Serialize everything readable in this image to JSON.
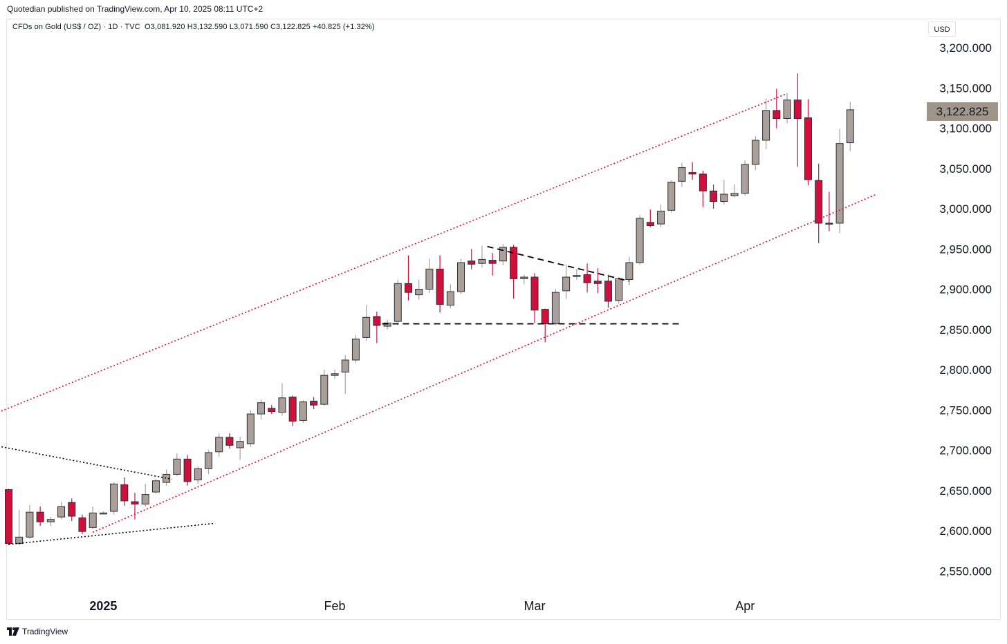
{
  "header": {
    "publisher_text": "Quotedian published on TradingView.com, Apr 10, 2025 08:11 UTC+2"
  },
  "legend": {
    "symbol_text": "CFDs on Gold (US$ / OZ) · 1D · TVC",
    "ohlc_text": "O3,081.920  H3,132.590  L3,071.590  C3,122.825  +40.825 (+1.32%)"
  },
  "price_scale": {
    "currency": "USD",
    "last_price_label": "3,122.825"
  },
  "footer": {
    "brand": "TradingView"
  },
  "colors": {
    "up": "#aaa099",
    "down": "#d0103a",
    "outline": "#2a2e39",
    "channel": "#d0103a",
    "pattern": "#000000",
    "last_price_bg": "#a0958a"
  },
  "chart_data": {
    "type": "candlestick",
    "title": "CFDs on Gold (US$ / OZ)",
    "interval": "1D",
    "ylim": [
      2520,
      3230
    ],
    "y_ticks": [
      {
        "value": 2550,
        "label": "2,550.000"
      },
      {
        "value": 2600,
        "label": "2,600.000"
      },
      {
        "value": 2650,
        "label": "2,650.000"
      },
      {
        "value": 2700,
        "label": "2,700.000"
      },
      {
        "value": 2750,
        "label": "2,750.000"
      },
      {
        "value": 2800,
        "label": "2,800.000"
      },
      {
        "value": 2850,
        "label": "2,850.000"
      },
      {
        "value": 2900,
        "label": "2,900.000"
      },
      {
        "value": 2950,
        "label": "2,950.000"
      },
      {
        "value": 3000,
        "label": "3,000.000"
      },
      {
        "value": 3050,
        "label": "3,050.000"
      },
      {
        "value": 3100,
        "label": "3,100.000"
      },
      {
        "value": 3150,
        "label": "3,150.000"
      },
      {
        "value": 3200,
        "label": "3,200.000"
      }
    ],
    "x_ticks": [
      {
        "index": 9,
        "label": "2025",
        "bold": true
      },
      {
        "index": 31,
        "label": "Feb",
        "bold": false
      },
      {
        "index": 50,
        "label": "Mar",
        "bold": false
      },
      {
        "index": 70,
        "label": "Apr",
        "bold": false
      }
    ],
    "candles": [
      {
        "o": 2651,
        "h": 2652,
        "l": 2582,
        "c": 2584
      },
      {
        "o": 2584,
        "h": 2626,
        "l": 2582,
        "c": 2592
      },
      {
        "o": 2592,
        "h": 2632,
        "l": 2590,
        "c": 2623
      },
      {
        "o": 2623,
        "h": 2630,
        "l": 2606,
        "c": 2611
      },
      {
        "o": 2611,
        "h": 2617,
        "l": 2606,
        "c": 2614
      },
      {
        "o": 2617,
        "h": 2636,
        "l": 2614,
        "c": 2630
      },
      {
        "o": 2635,
        "h": 2640,
        "l": 2612,
        "c": 2618
      },
      {
        "o": 2616,
        "h": 2620,
        "l": 2596,
        "c": 2599
      },
      {
        "o": 2604,
        "h": 2630,
        "l": 2602,
        "c": 2622
      },
      {
        "o": 2622,
        "h": 2624,
        "l": 2620,
        "c": 2622
      },
      {
        "o": 2624,
        "h": 2660,
        "l": 2620,
        "c": 2658
      },
      {
        "o": 2657,
        "h": 2666,
        "l": 2631,
        "c": 2637
      },
      {
        "o": 2636,
        "h": 2647,
        "l": 2614,
        "c": 2633
      },
      {
        "o": 2633,
        "h": 2658,
        "l": 2630,
        "c": 2645
      },
      {
        "o": 2648,
        "h": 2664,
        "l": 2646,
        "c": 2662
      },
      {
        "o": 2660,
        "h": 2676,
        "l": 2656,
        "c": 2670
      },
      {
        "o": 2670,
        "h": 2696,
        "l": 2668,
        "c": 2689
      },
      {
        "o": 2689,
        "h": 2694,
        "l": 2656,
        "c": 2661
      },
      {
        "o": 2663,
        "h": 2680,
        "l": 2658,
        "c": 2677
      },
      {
        "o": 2677,
        "h": 2700,
        "l": 2670,
        "c": 2697
      },
      {
        "o": 2698,
        "h": 2721,
        "l": 2692,
        "c": 2716
      },
      {
        "o": 2716,
        "h": 2721,
        "l": 2702,
        "c": 2706
      },
      {
        "o": 2703,
        "h": 2717,
        "l": 2688,
        "c": 2711
      },
      {
        "o": 2708,
        "h": 2750,
        "l": 2704,
        "c": 2745
      },
      {
        "o": 2745,
        "h": 2763,
        "l": 2738,
        "c": 2759
      },
      {
        "o": 2752,
        "h": 2756,
        "l": 2745,
        "c": 2748
      },
      {
        "o": 2747,
        "h": 2783,
        "l": 2743,
        "c": 2765
      },
      {
        "o": 2766,
        "h": 2768,
        "l": 2730,
        "c": 2736
      },
      {
        "o": 2737,
        "h": 2762,
        "l": 2734,
        "c": 2760
      },
      {
        "o": 2761,
        "h": 2766,
        "l": 2751,
        "c": 2756
      },
      {
        "o": 2757,
        "h": 2800,
        "l": 2755,
        "c": 2793
      },
      {
        "o": 2793,
        "h": 2800,
        "l": 2789,
        "c": 2795
      },
      {
        "o": 2797,
        "h": 2818,
        "l": 2770,
        "c": 2812
      },
      {
        "o": 2812,
        "h": 2843,
        "l": 2808,
        "c": 2838
      },
      {
        "o": 2840,
        "h": 2880,
        "l": 2836,
        "c": 2865
      },
      {
        "o": 2866,
        "h": 2872,
        "l": 2833,
        "c": 2855
      },
      {
        "o": 2854,
        "h": 2862,
        "l": 2850,
        "c": 2858
      },
      {
        "o": 2860,
        "h": 2912,
        "l": 2855,
        "c": 2907
      },
      {
        "o": 2907,
        "h": 2942,
        "l": 2886,
        "c": 2896
      },
      {
        "o": 2893,
        "h": 2912,
        "l": 2887,
        "c": 2900
      },
      {
        "o": 2900,
        "h": 2938,
        "l": 2895,
        "c": 2925
      },
      {
        "o": 2925,
        "h": 2942,
        "l": 2871,
        "c": 2881
      },
      {
        "o": 2880,
        "h": 2906,
        "l": 2876,
        "c": 2897
      },
      {
        "o": 2897,
        "h": 2938,
        "l": 2894,
        "c": 2933
      },
      {
        "o": 2935,
        "h": 2950,
        "l": 2925,
        "c": 2931
      },
      {
        "o": 2932,
        "h": 2954,
        "l": 2927,
        "c": 2937
      },
      {
        "o": 2936,
        "h": 2945,
        "l": 2917,
        "c": 2932
      },
      {
        "o": 2935,
        "h": 2956,
        "l": 2930,
        "c": 2952
      },
      {
        "o": 2952,
        "h": 2955,
        "l": 2888,
        "c": 2913
      },
      {
        "o": 2913,
        "h": 2918,
        "l": 2906,
        "c": 2915
      },
      {
        "o": 2915,
        "h": 2920,
        "l": 2858,
        "c": 2874
      },
      {
        "o": 2875,
        "h": 2876,
        "l": 2834,
        "c": 2857
      },
      {
        "o": 2857,
        "h": 2900,
        "l": 2855,
        "c": 2896
      },
      {
        "o": 2898,
        "h": 2931,
        "l": 2888,
        "c": 2915
      },
      {
        "o": 2916,
        "h": 2925,
        "l": 2912,
        "c": 2917
      },
      {
        "o": 2918,
        "h": 2932,
        "l": 2896,
        "c": 2908
      },
      {
        "o": 2910,
        "h": 2926,
        "l": 2895,
        "c": 2907
      },
      {
        "o": 2910,
        "h": 2918,
        "l": 2877,
        "c": 2885
      },
      {
        "o": 2886,
        "h": 2915,
        "l": 2882,
        "c": 2913
      },
      {
        "o": 2912,
        "h": 2940,
        "l": 2905,
        "c": 2933
      },
      {
        "o": 2933,
        "h": 2992,
        "l": 2930,
        "c": 2988
      },
      {
        "o": 2983,
        "h": 2999,
        "l": 2977,
        "c": 2979
      },
      {
        "o": 2981,
        "h": 3005,
        "l": 2977,
        "c": 2997
      },
      {
        "o": 2998,
        "h": 3035,
        "l": 2995,
        "c": 3033
      },
      {
        "o": 3034,
        "h": 3057,
        "l": 3027,
        "c": 3051
      },
      {
        "o": 3045,
        "h": 3058,
        "l": 3036,
        "c": 3043
      },
      {
        "o": 3043,
        "h": 3047,
        "l": 3002,
        "c": 3022
      },
      {
        "o": 3022,
        "h": 3030,
        "l": 3000,
        "c": 3009
      },
      {
        "o": 3009,
        "h": 3036,
        "l": 3005,
        "c": 3018
      },
      {
        "o": 3016,
        "h": 3030,
        "l": 3014,
        "c": 3019
      },
      {
        "o": 3019,
        "h": 3060,
        "l": 3016,
        "c": 3055
      },
      {
        "o": 3055,
        "h": 3090,
        "l": 3048,
        "c": 3085
      },
      {
        "o": 3085,
        "h": 3137,
        "l": 3074,
        "c": 3122
      },
      {
        "o": 3122,
        "h": 3149,
        "l": 3100,
        "c": 3112
      },
      {
        "o": 3112,
        "h": 3143,
        "l": 3106,
        "c": 3135
      },
      {
        "o": 3135,
        "h": 3168,
        "l": 3052,
        "c": 3112
      },
      {
        "o": 3113,
        "h": 3136,
        "l": 3029,
        "c": 3036
      },
      {
        "o": 3035,
        "h": 3056,
        "l": 2957,
        "c": 2982
      },
      {
        "o": 2982,
        "h": 3021,
        "l": 2972,
        "c": 2981
      },
      {
        "o": 2982,
        "h": 3099,
        "l": 2970,
        "c": 3081
      },
      {
        "o": 3081.92,
        "h": 3132.59,
        "l": 3071.59,
        "c": 3122.825
      }
    ],
    "drawings": [
      {
        "name": "channel-upper-line",
        "style": "dotted",
        "color": "#d0103a",
        "from": {
          "index": -1,
          "value": 2747
        },
        "to": {
          "index": 74,
          "value": 3143
        }
      },
      {
        "name": "channel-lower-line",
        "style": "dotted",
        "color": "#d0103a",
        "from": {
          "index": 8,
          "value": 2598
        },
        "to": {
          "index": 82.5,
          "value": 3018
        }
      },
      {
        "name": "wedge-upper-line",
        "style": "dotted",
        "color": "#000000",
        "from": {
          "index": -1,
          "value": 2705
        },
        "to": {
          "index": 15.5,
          "value": 2664
        }
      },
      {
        "name": "wedge-lower-line",
        "style": "dotted",
        "color": "#000000",
        "from": {
          "index": 0,
          "value": 2583
        },
        "to": {
          "index": 19.5,
          "value": 2609
        }
      },
      {
        "name": "triangle-upper-line",
        "style": "dashed",
        "color": "#000000",
        "from": {
          "index": 45.5,
          "value": 2953
        },
        "to": {
          "index": 59,
          "value": 2910
        }
      },
      {
        "name": "support-line",
        "style": "dashed",
        "color": "#000000",
        "from": {
          "index": 35.5,
          "value": 2857
        },
        "to": {
          "index": 64,
          "value": 2857
        }
      }
    ]
  }
}
